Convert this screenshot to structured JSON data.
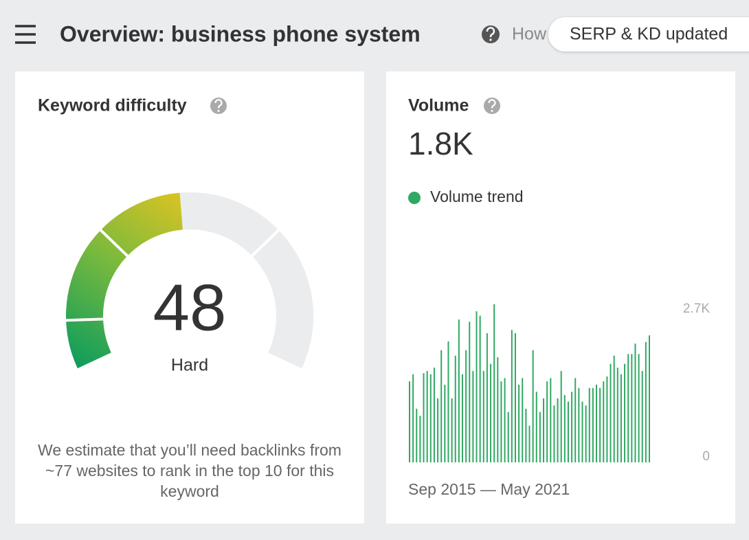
{
  "header": {
    "title": "Overview: business phone system",
    "help_link": "How",
    "badge": "SERP & KD updated"
  },
  "keyword_difficulty": {
    "title": "Keyword difficulty",
    "value": 48,
    "label": "Hard",
    "gauge_lim": [
      0,
      100
    ],
    "note": "We estimate that you’ll need backlinks from ~77 websites to rank in the top 10 for this keyword"
  },
  "volume": {
    "title": "Volume",
    "value": "1.8K",
    "period": "Sep 2015 — May 2021"
  },
  "chart_data": {
    "type": "bar",
    "series": [
      {
        "name": "Volume trend",
        "color": "#2fa862",
        "values": [
          1480,
          1610,
          980,
          850,
          1630,
          1670,
          1610,
          1730,
          1170,
          2050,
          1420,
          2210,
          1170,
          1950,
          2610,
          1610,
          2050,
          2570,
          1670,
          2760,
          2680,
          1670,
          2360,
          1800,
          2890,
          1920,
          1480,
          1540,
          920,
          2420,
          2360,
          1420,
          1540,
          980,
          670,
          2050,
          1290,
          920,
          1170,
          1480,
          1540,
          1040,
          1170,
          1670,
          1230,
          1110,
          1290,
          1540,
          1360,
          1110,
          1040,
          1360,
          1360,
          1420,
          1360,
          1480,
          1570,
          1800,
          1950,
          1730,
          1610,
          1800,
          1980,
          1980,
          2170,
          1980,
          1670,
          2200,
          2320
        ]
      }
    ],
    "ylim": [
      0,
      2900
    ],
    "yticks": [
      0,
      {
        "value": 2700,
        "label": "2.7K"
      }
    ],
    "grid": false
  }
}
